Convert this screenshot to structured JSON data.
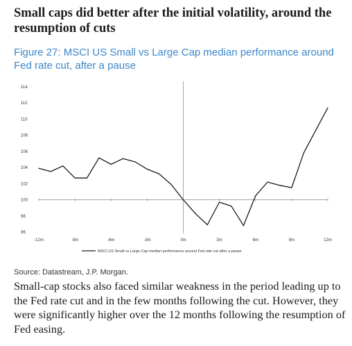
{
  "heading": "Small caps did better after the initial volatility, around the resumption of cuts",
  "figure_title": "Figure 27: MSCI US Small vs Large Cap median performance around Fed rate cut, after a pause",
  "source": "Source: Datastream, J.P. Morgan.",
  "body_text": "Small-cap stocks also faced similar weakness in the period leading up to the Fed rate cut and in the few months following the cut. However, they were significantly higher over the 12 months following the resumption of Fed easing.",
  "colors": {
    "line": "#1a1a1a",
    "vline": "#7fb0d8",
    "title": "#3a86c8"
  },
  "chart_data": {
    "type": "line",
    "title": "",
    "xlabel": "",
    "ylabel": "",
    "ylim": [
      96,
      114
    ],
    "yticks": [
      96,
      98,
      100,
      102,
      104,
      106,
      108,
      110,
      112,
      114
    ],
    "xlim": [
      -12,
      12
    ],
    "xticks": [
      -12,
      -9,
      -6,
      -3,
      0,
      3,
      6,
      9,
      12
    ],
    "xtick_labels": [
      "-12m",
      "-9m",
      "-6m",
      "-3m",
      "0m",
      "3m",
      "6m",
      "9m",
      "12m"
    ],
    "reference_line_x": 0,
    "grid": false,
    "legend_position": "bottom",
    "series": [
      {
        "name": "MSCI US Small vs Large Cap median performance around Fed rate cut after a pause",
        "x": [
          -12,
          -11,
          -10,
          -9,
          -8,
          -7,
          -6,
          -5,
          -4,
          -3,
          -2,
          -1,
          0,
          1,
          2,
          3,
          4,
          5,
          6,
          7,
          8,
          9,
          10,
          11,
          12
        ],
        "values": [
          103.9,
          103.5,
          104.2,
          102.7,
          102.7,
          105.2,
          104.4,
          105.1,
          104.7,
          103.8,
          103.2,
          101.9,
          100.0,
          98.3,
          96.9,
          99.7,
          99.2,
          96.8,
          100.5,
          102.2,
          101.8,
          101.5,
          105.8,
          108.6,
          111.4
        ]
      }
    ]
  }
}
